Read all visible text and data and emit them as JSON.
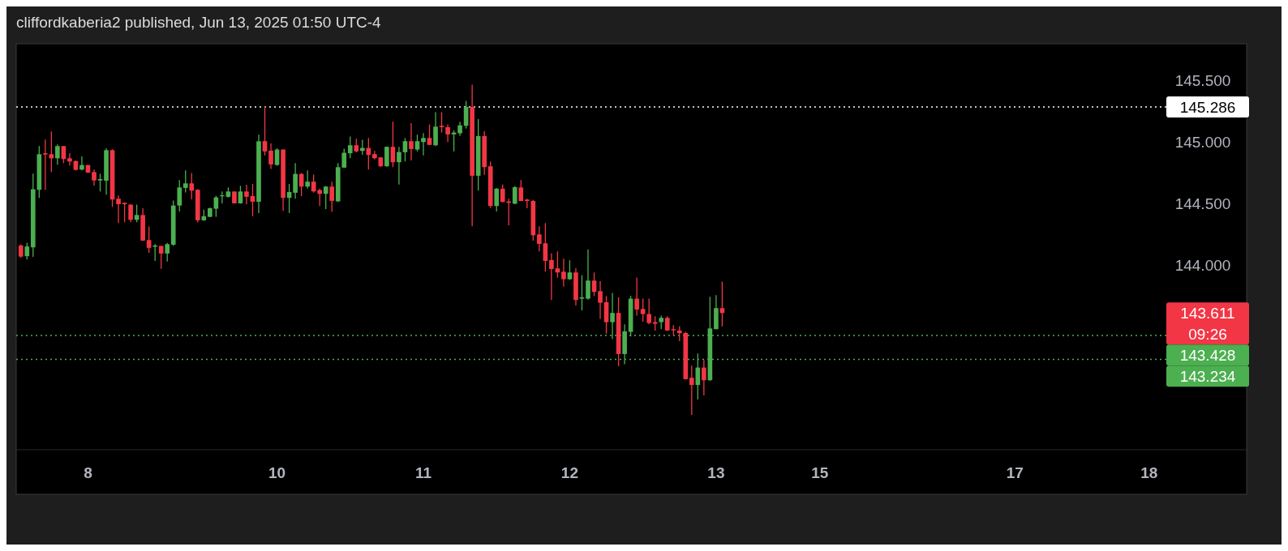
{
  "chart_data": {
    "type": "candlestick",
    "title": "cliffordkaberia2 published, Jun 13, 2025 01:50 UTC-4",
    "categories": [
      null,
      null,
      null,
      null,
      null,
      null,
      null,
      null,
      null,
      null,
      null,
      "8",
      null,
      null,
      null,
      null,
      null,
      null,
      null,
      null,
      null,
      null,
      null,
      null,
      null,
      null,
      null,
      null,
      null,
      null,
      null,
      null,
      null,
      null,
      null,
      null,
      null,
      null,
      null,
      null,
      null,
      null,
      "10",
      null,
      null,
      null,
      null,
      null,
      null,
      null,
      null,
      null,
      null,
      null,
      null,
      null,
      null,
      null,
      null,
      null,
      null,
      null,
      null,
      null,
      null,
      null,
      "11",
      null,
      null,
      null,
      null,
      null,
      null,
      null,
      null,
      null,
      null,
      null,
      null,
      null,
      null,
      null,
      null,
      null,
      null,
      null,
      null,
      null,
      null,
      null,
      "12",
      null,
      null,
      null,
      null,
      null,
      null,
      null,
      null,
      null,
      null,
      null,
      null,
      null,
      null,
      null,
      null,
      null,
      null,
      null,
      null,
      null,
      null,
      null,
      "13",
      null,
      null,
      null,
      null,
      null,
      null,
      null,
      null,
      null,
      null,
      null,
      null,
      null,
      null,
      null,
      null,
      "15",
      null,
      null,
      null,
      null,
      null,
      null,
      null,
      null,
      null,
      null,
      null,
      null,
      null,
      null,
      null,
      null,
      null,
      null,
      null,
      null,
      null,
      null,
      null,
      null,
      null,
      null,
      null,
      null,
      null,
      null,
      null,
      "17",
      null,
      null,
      null,
      null,
      null,
      null,
      null,
      null,
      null,
      null,
      null,
      null,
      null,
      null,
      null,
      null,
      null,
      null,
      null,
      null,
      null,
      "18",
      null
    ],
    "ohlc": [
      [
        144.16,
        144.17,
        144.06,
        144.07
      ],
      [
        144.073,
        144.183,
        144.046,
        144.152
      ],
      [
        144.145,
        144.744,
        144.068,
        144.617
      ],
      [
        144.613,
        144.968,
        144.547,
        144.902
      ],
      [
        144.91,
        145.021,
        144.613,
        144.9
      ],
      [
        144.902,
        145.087,
        144.757,
        144.869
      ],
      [
        144.869,
        144.981,
        144.817,
        144.968
      ],
      [
        144.968,
        144.97,
        144.83,
        144.863
      ],
      [
        144.869,
        144.909,
        144.81,
        144.843
      ],
      [
        144.847,
        144.85,
        144.77,
        144.775
      ],
      [
        144.777,
        144.885,
        144.77,
        144.814
      ],
      [
        144.814,
        144.816,
        144.75,
        144.753
      ],
      [
        144.757,
        144.777,
        144.645,
        144.689
      ],
      [
        144.689,
        144.744,
        144.599,
        144.7
      ],
      [
        144.687,
        144.95,
        144.573,
        144.935
      ],
      [
        144.935,
        144.942,
        144.474,
        144.534
      ],
      [
        144.54,
        144.566,
        144.343,
        144.496
      ],
      [
        144.507,
        144.51,
        144.349,
        144.496
      ],
      [
        144.492,
        144.495,
        144.349,
        144.369
      ],
      [
        144.369,
        144.492,
        144.349,
        144.408
      ],
      [
        144.408,
        144.463,
        144.196,
        144.2
      ],
      [
        144.204,
        144.314,
        144.101,
        144.141
      ],
      [
        144.15,
        144.171,
        144.035,
        144.16
      ],
      [
        144.156,
        144.16,
        143.97,
        144.095
      ],
      [
        144.095,
        144.182,
        144.029,
        144.171
      ],
      [
        144.167,
        144.525,
        144.156,
        144.485
      ],
      [
        144.485,
        144.691,
        144.437,
        144.632
      ],
      [
        144.628,
        144.771,
        144.591,
        144.665
      ],
      [
        144.665,
        144.749,
        144.536,
        144.606
      ],
      [
        144.613,
        144.617,
        144.347,
        144.365
      ],
      [
        144.365,
        144.452,
        144.36,
        144.398
      ],
      [
        144.393,
        144.468,
        144.39,
        144.463
      ],
      [
        144.459,
        144.564,
        144.393,
        144.551
      ],
      [
        144.56,
        144.599,
        144.503,
        144.568
      ],
      [
        144.556,
        144.632,
        144.55,
        144.599
      ],
      [
        144.599,
        144.6,
        144.5,
        144.503
      ],
      [
        144.503,
        144.645,
        144.5,
        144.599
      ],
      [
        144.599,
        144.654,
        144.496,
        144.556
      ],
      [
        144.562,
        144.661,
        144.397,
        144.516
      ],
      [
        144.516,
        145.06,
        144.424,
        145.007
      ],
      [
        145.008,
        145.29,
        144.892,
        144.925
      ],
      [
        144.931,
        144.99,
        144.782,
        144.819
      ],
      [
        144.815,
        144.951,
        144.808,
        144.94
      ],
      [
        144.94,
        144.942,
        144.442,
        144.547
      ],
      [
        144.547,
        144.661,
        144.424,
        144.595
      ],
      [
        144.589,
        144.83,
        144.54,
        144.742
      ],
      [
        144.742,
        144.749,
        144.562,
        144.639
      ],
      [
        144.639,
        144.771,
        144.622,
        144.679
      ],
      [
        144.679,
        144.738,
        144.589,
        144.6
      ],
      [
        144.611,
        144.622,
        144.481,
        144.58
      ],
      [
        144.58,
        144.644,
        144.457,
        144.639
      ],
      [
        144.639,
        144.679,
        144.435,
        144.523
      ],
      [
        144.519,
        144.83,
        144.514,
        144.797
      ],
      [
        144.793,
        144.947,
        144.79,
        144.914
      ],
      [
        144.91,
        145.045,
        144.87,
        144.975
      ],
      [
        144.975,
        145.028,
        144.918,
        144.925
      ],
      [
        144.929,
        145.019,
        144.898,
        144.953
      ],
      [
        144.953,
        145.034,
        144.778,
        144.896
      ],
      [
        144.903,
        144.929,
        144.859,
        144.87
      ],
      [
        144.876,
        144.88,
        144.8,
        144.804
      ],
      [
        144.804,
        144.965,
        144.8,
        144.962
      ],
      [
        144.962,
        145.166,
        144.797,
        144.837
      ],
      [
        144.837,
        144.962,
        144.655,
        144.92
      ],
      [
        144.918,
        145.034,
        144.843,
        145.008
      ],
      [
        145.008,
        145.155,
        144.852,
        144.944
      ],
      [
        144.94,
        145.061,
        144.925,
        145.008
      ],
      [
        145.001,
        145.074,
        144.892,
        145.034
      ],
      [
        145.034,
        145.144,
        144.975,
        144.978
      ],
      [
        144.975,
        145.243,
        144.968,
        145.126
      ],
      [
        145.133,
        145.243,
        145.078,
        145.122
      ],
      [
        145.122,
        145.144,
        145.001,
        145.063
      ],
      [
        145.063,
        145.096,
        144.925,
        145.078
      ],
      [
        145.072,
        145.166,
        145.05,
        145.137
      ],
      [
        145.133,
        145.335,
        145.111,
        145.287
      ],
      [
        145.287,
        145.467,
        144.317,
        144.727
      ],
      [
        144.727,
        145.188,
        144.606,
        145.05
      ],
      [
        145.05,
        145.089,
        144.734,
        144.797
      ],
      [
        144.804,
        144.843,
        144.464,
        144.481
      ],
      [
        144.481,
        144.628,
        144.437,
        144.622
      ],
      [
        144.622,
        144.655,
        144.51,
        144.514
      ],
      [
        144.518,
        144.54,
        144.325,
        144.507
      ],
      [
        144.5,
        144.643,
        144.496,
        144.634
      ],
      [
        144.632,
        144.691,
        144.52,
        144.522
      ],
      [
        144.533,
        144.54,
        144.463,
        144.522
      ],
      [
        144.522,
        144.529,
        144.2,
        144.243
      ],
      [
        144.25,
        144.316,
        144.112,
        144.173
      ],
      [
        144.178,
        144.342,
        143.947,
        144.035
      ],
      [
        144.042,
        144.096,
        143.717,
        143.969
      ],
      [
        143.974,
        144.112,
        143.899,
        143.941
      ],
      [
        143.947,
        144.053,
        143.827,
        143.886
      ],
      [
        143.886,
        144.04,
        143.88,
        143.941
      ],
      [
        143.941,
        143.976,
        143.673,
        143.717
      ],
      [
        143.728,
        143.919,
        143.633,
        143.739
      ],
      [
        143.728,
        144.129,
        143.72,
        143.875
      ],
      [
        143.875,
        143.941,
        143.75,
        143.783
      ],
      [
        143.789,
        143.87,
        143.563,
        143.695
      ],
      [
        143.699,
        143.75,
        143.443,
        143.537
      ],
      [
        143.537,
        143.774,
        143.399,
        143.612
      ],
      [
        143.612,
        143.739,
        143.179,
        143.278
      ],
      [
        143.278,
        143.519,
        143.195,
        143.462
      ],
      [
        143.458,
        143.75,
        143.421,
        143.728
      ],
      [
        143.728,
        143.899,
        143.59,
        143.64
      ],
      [
        143.644,
        143.728,
        143.541,
        143.603
      ],
      [
        143.603,
        143.728,
        143.519,
        143.53
      ],
      [
        143.537,
        143.585,
        143.469,
        143.524
      ],
      [
        143.537,
        143.59,
        143.48,
        143.572
      ],
      [
        143.572,
        143.585,
        143.465,
        143.469
      ],
      [
        143.48,
        143.513,
        143.432,
        143.471
      ],
      [
        143.469,
        143.504,
        143.383,
        143.447
      ],
      [
        143.449,
        143.458,
        143.07,
        143.074
      ],
      [
        143.085,
        143.184,
        142.784,
        143.026
      ],
      [
        143.026,
        143.282,
        142.909,
        143.168
      ],
      [
        143.168,
        143.23,
        142.942,
        143.065
      ],
      [
        143.065,
        143.743,
        143.06,
        143.486
      ],
      [
        143.48,
        143.756,
        143.48,
        143.651
      ],
      [
        143.651,
        143.866,
        143.502,
        143.611
      ],
      null,
      null,
      null,
      null,
      null,
      null,
      null,
      null,
      null,
      null,
      null,
      null,
      null,
      null,
      null,
      null,
      null,
      null,
      null,
      null,
      null,
      null,
      null,
      null,
      null,
      null,
      null,
      null,
      null,
      null,
      null,
      null,
      null,
      null,
      null,
      null,
      null,
      null,
      null,
      null,
      null,
      null,
      null,
      null,
      null,
      null,
      null,
      null,
      null,
      null,
      null,
      null,
      null,
      null,
      null,
      null,
      null,
      null,
      null,
      null,
      null,
      null,
      null,
      null,
      null,
      null,
      null,
      null,
      null,
      null,
      null
    ],
    "colors": [
      "#f23645",
      "#4caf50",
      "#4caf50",
      "#4caf50",
      "#f23645",
      "#f23645",
      "#4caf50",
      "#f23645",
      "#f23645",
      "#f23645",
      "#4caf50",
      "#f23645",
      "#f23645",
      "#4caf50",
      "#4caf50",
      "#f23645",
      "#f23645",
      "#f23645",
      "#f23645",
      "#4caf50",
      "#f23645",
      "#f23645",
      "#4caf50",
      "#f23645",
      "#4caf50",
      "#4caf50",
      "#4caf50",
      "#4caf50",
      "#f23645",
      "#f23645",
      "#4caf50",
      "#4caf50",
      "#4caf50",
      "#4caf50",
      "#4caf50",
      "#f23645",
      "#4caf50",
      "#f23645",
      "#f23645",
      "#4caf50",
      "#f23645",
      "#f23645",
      "#4caf50",
      "#f23645",
      "#4caf50",
      "#4caf50",
      "#f23645",
      "#4caf50",
      "#f23645",
      "#f23645",
      "#4caf50",
      "#f23645",
      "#4caf50",
      "#4caf50",
      "#4caf50",
      "#f23645",
      "#4caf50",
      "#f23645",
      "#f23645",
      "#f23645",
      "#4caf50",
      "#f23645",
      "#4caf50",
      "#4caf50",
      "#f23645",
      "#4caf50",
      "#4caf50",
      "#f23645",
      "#4caf50",
      "#f23645",
      "#f23645",
      "#4caf50",
      "#4caf50",
      "#4caf50",
      "#f23645",
      "#4caf50",
      "#f23645",
      "#f23645",
      "#4caf50",
      "#f23645",
      "#f23645",
      "#4caf50",
      "#f23645",
      "#f23645",
      "#f23645",
      "#f23645",
      "#f23645",
      "#f23645",
      "#f23645",
      "#f23645",
      "#4caf50",
      "#f23645",
      "#4caf50",
      "#4caf50",
      "#f23645",
      "#f23645",
      "#f23645",
      "#4caf50",
      "#f23645",
      "#4caf50",
      "#4caf50",
      "#f23645",
      "#f23645",
      "#f23645",
      "#f23645",
      "#4caf50",
      "#f23645",
      "#f23645",
      "#f23645",
      "#f23645",
      "#f23645",
      "#4caf50",
      "#f23645",
      "#4caf50",
      "#4caf50",
      "#f23645",
      null,
      null,
      null,
      null,
      null,
      null,
      null,
      null,
      null,
      null,
      null,
      null,
      null,
      null,
      null,
      null,
      null,
      null,
      null,
      null,
      null,
      null,
      null,
      null,
      null,
      null,
      null,
      null,
      null,
      null,
      null,
      null,
      null,
      null,
      null,
      null,
      null,
      null,
      null,
      null,
      null,
      null,
      null,
      null,
      null,
      null,
      null,
      null,
      null,
      null,
      null,
      null,
      null,
      null,
      null,
      null,
      null,
      null,
      null,
      null,
      null,
      null,
      null,
      null,
      null,
      null,
      null,
      null,
      null,
      null,
      null
    ],
    "ylim": [
      142.5,
      145.8
    ],
    "yticks": [
      {
        "value": 144,
        "label": "144.000"
      },
      {
        "value": 144.5,
        "label": "144.500"
      },
      {
        "value": 145,
        "label": "145.000"
      },
      {
        "value": 145.5,
        "label": "145.500"
      }
    ],
    "grid": false,
    "ref_lines": [
      {
        "axis": "y",
        "value": 145.286,
        "label": "145.286",
        "color": "#ffffff",
        "line_style": "dotted"
      },
      {
        "axis": "y",
        "value": 143.428,
        "label": "143.428",
        "color": "#4caf50",
        "line_style": "dotted"
      },
      {
        "axis": "y",
        "value": 143.234,
        "label": "143.234",
        "color": "#4caf50",
        "line_style": "dotted"
      }
    ],
    "annotations": [
      "143.611",
      "09:26"
    ]
  }
}
